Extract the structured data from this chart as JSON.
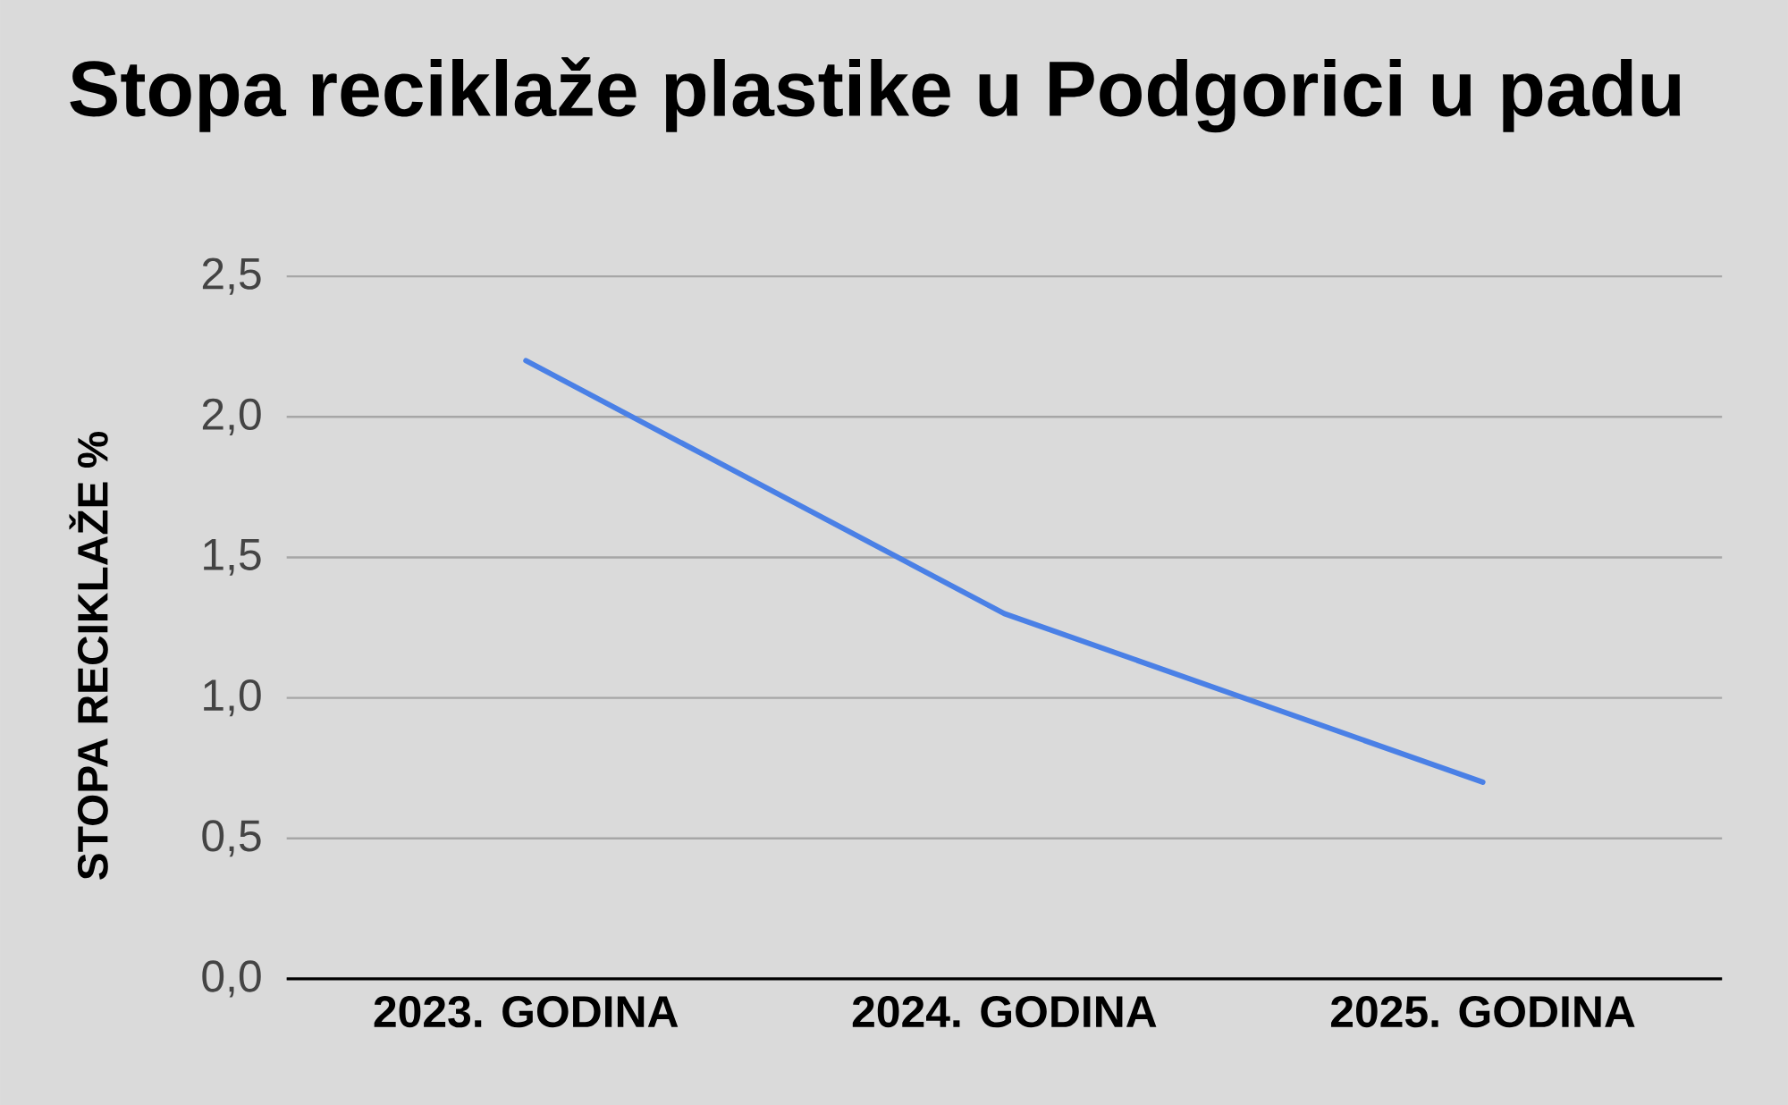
{
  "chart_data": {
    "type": "line",
    "title": "Stopa reciklaže plastike u Podgorici u padu",
    "ylabel": "STOPA RECIKLAŽE %",
    "categories": [
      "2023. GODINA",
      "2024. GODINA",
      "2025. GODINA"
    ],
    "values": [
      2.2,
      1.3,
      0.7
    ],
    "color": "#4a80e6",
    "ylim": [
      0,
      2.5
    ],
    "yticks": [
      {
        "value": 0,
        "label": "0,0"
      },
      {
        "value": 0.5,
        "label": "0,5"
      },
      {
        "value": 1,
        "label": "1,0"
      },
      {
        "value": 1.5,
        "label": "1,5"
      },
      {
        "value": 2,
        "label": "2,0"
      },
      {
        "value": 2.5,
        "label": "2,5"
      }
    ],
    "grid": "y",
    "line_style": "solid"
  }
}
